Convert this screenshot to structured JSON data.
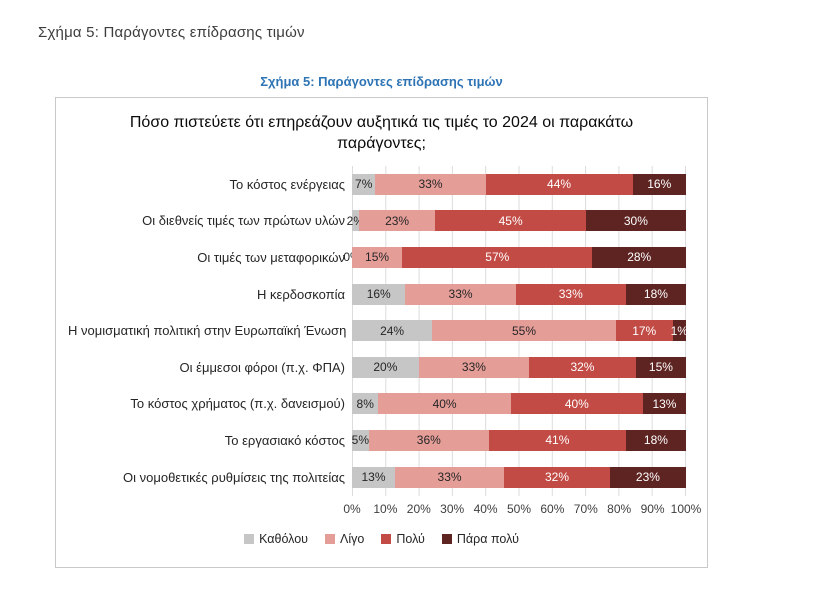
{
  "page": {
    "heading": "Σχήμα 5: Παράγοντες επίδρασης τιμών",
    "figure_caption": "Σχήμα 5: Παράγοντες επίδρασης τιμών"
  },
  "chart_data": {
    "type": "bar",
    "orientation": "horizontal",
    "stacked_100_percent": true,
    "title": "Πόσο πιστεύετε ότι επηρεάζουν αυξητικά τις τιμές το 2024 οι παρακάτω παράγοντες;",
    "categories": [
      "Το κόστος ενέργειας",
      "Οι διεθνείς τιμές των πρώτων υλών",
      "Οι τιμές των μεταφορικών",
      "Η κερδοσκοπία",
      "Η νομισματική πολιτική στην Ευρωπαϊκή Ένωση",
      "Οι έμμεσοι φόροι (π.χ. ΦΠΑ)",
      "Το κόστος χρήματος (π.χ. δανεισμού)",
      "Το εργασιακό κόστος",
      "Οι νομοθετικές ρυθμίσεις της πολιτείας"
    ],
    "series": [
      {
        "name": "Καθόλου",
        "values": [
          7,
          2,
          0,
          16,
          24,
          20,
          8,
          5,
          13
        ]
      },
      {
        "name": "Λίγο",
        "values": [
          33,
          23,
          15,
          33,
          55,
          33,
          40,
          36,
          33
        ]
      },
      {
        "name": "Πολύ",
        "values": [
          44,
          45,
          57,
          33,
          17,
          32,
          40,
          41,
          32
        ]
      },
      {
        "name": "Πάρα πολύ",
        "values": [
          16,
          30,
          28,
          18,
          1,
          15,
          13,
          18,
          23
        ]
      }
    ],
    "width_overrides": {
      "4": [
        24,
        55,
        17,
        4
      ]
    },
    "value_label_suffix": "%",
    "legend": [
      "Καθόλου",
      "Λίγο",
      "Πολύ",
      "Πάρα πολύ"
    ],
    "legend_position": "bottom",
    "colors": [
      "#c6c6c6",
      "#e59d98",
      "#c24b45",
      "#5e2422"
    ],
    "label_text_colors": [
      "#262626",
      "#262626",
      "#ffffff",
      "#ffffff"
    ],
    "x_ticks": [
      "0%",
      "10%",
      "20%",
      "30%",
      "40%",
      "50%",
      "60%",
      "70%",
      "80%",
      "90%",
      "100%"
    ],
    "xlim": [
      0,
      100
    ],
    "grid": true,
    "gridline_color": "#dcdcdc",
    "caption_color": "#2e74b5"
  }
}
